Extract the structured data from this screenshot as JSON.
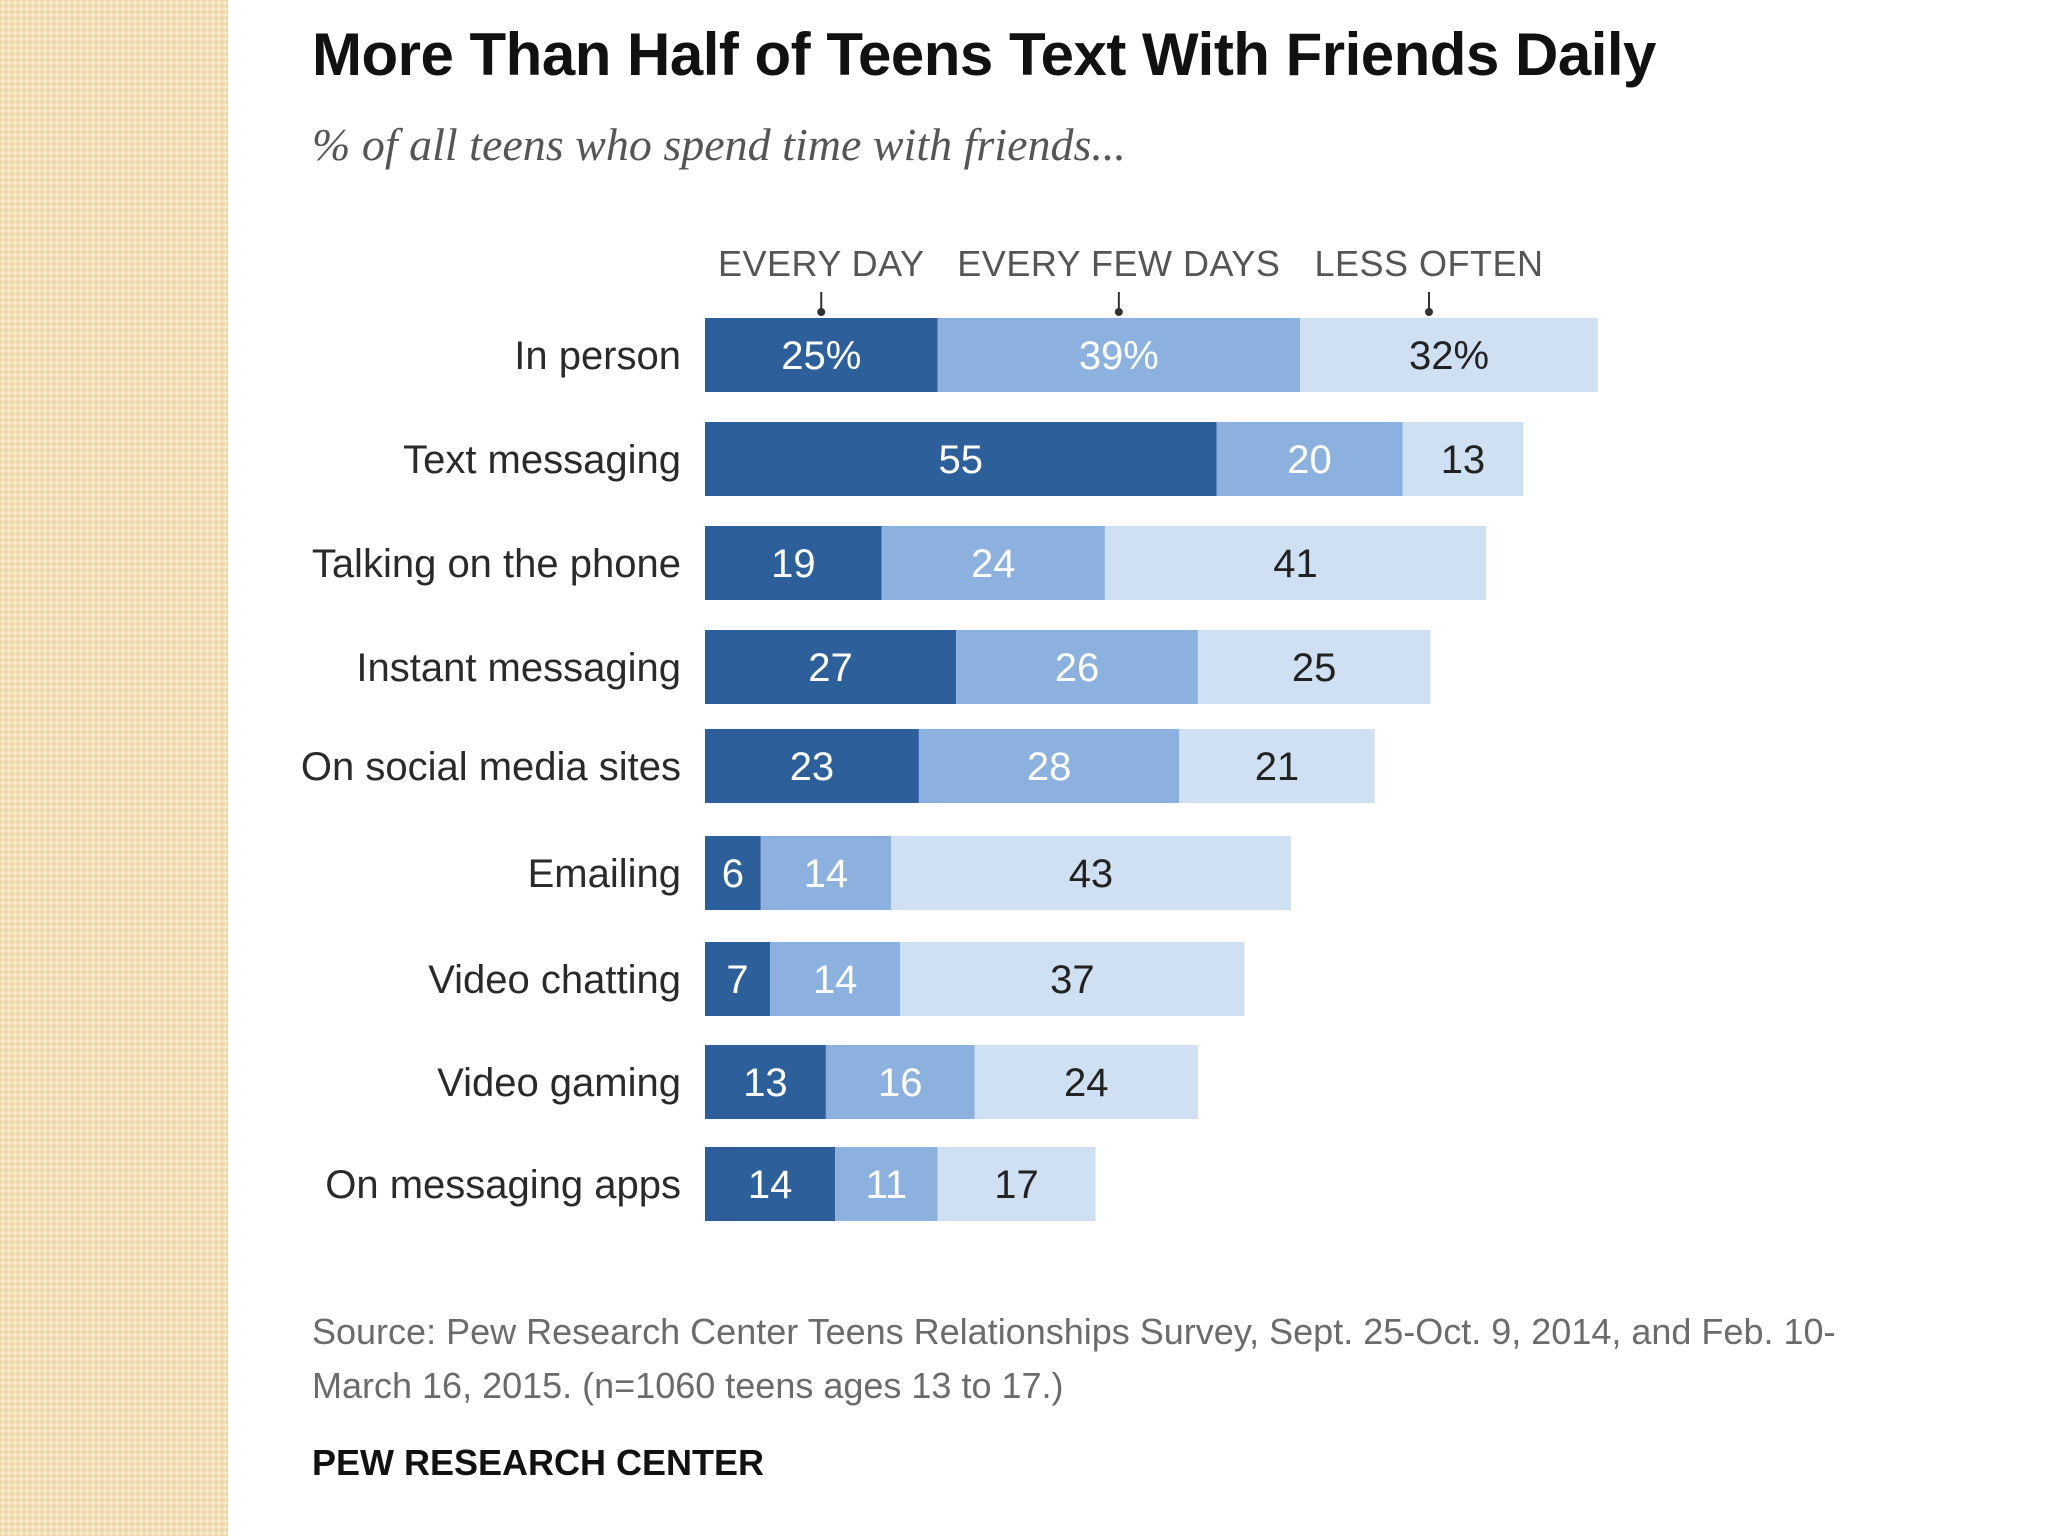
{
  "colors": {
    "every_day": "#2d609b",
    "every_few_days": "#8cb1df",
    "less_often": "#cfe0f3",
    "dark_text": "#222222",
    "light_text": "#ffffff"
  },
  "chart_data": {
    "type": "bar",
    "orientation": "horizontal-stacked",
    "title": "More Than Half of Teens Text With Friends Daily",
    "subtitle": "% of all teens who spend time with friends...",
    "categories": [
      "In person",
      "Text messaging",
      "Talking on the phone",
      "Instant messaging",
      "On social media sites",
      "Emailing",
      "Video chatting",
      "Video gaming",
      "On messaging apps"
    ],
    "series": [
      {
        "name": "EVERY DAY",
        "values": [
          25,
          55,
          19,
          27,
          23,
          6,
          7,
          13,
          14
        ],
        "labels": [
          "25%",
          "55",
          "19",
          "27",
          "23",
          "6",
          "7",
          "13",
          "14"
        ]
      },
      {
        "name": "EVERY FEW DAYS",
        "values": [
          39,
          20,
          24,
          26,
          28,
          14,
          14,
          16,
          11
        ],
        "labels": [
          "39%",
          "20",
          "24",
          "26",
          "28",
          "14",
          "14",
          "16",
          "11"
        ]
      },
      {
        "name": "LESS OFTEN",
        "values": [
          32,
          13,
          41,
          25,
          21,
          43,
          37,
          24,
          17
        ],
        "labels": [
          "32%",
          "13",
          "41",
          "25",
          "21",
          "43",
          "37",
          "24",
          "17"
        ]
      }
    ],
    "xlim": [
      0,
      100
    ],
    "xlabel": "",
    "ylabel": "",
    "grid": false,
    "legend": "top"
  },
  "footer": {
    "source": "Source: Pew Research Center Teens Relationships Survey, Sept. 25-Oct. 9, 2014, and Feb. 10-March 16, 2015.  (n=1060 teens ages 13 to 17.)",
    "brand": "PEW RESEARCH CENTER"
  }
}
